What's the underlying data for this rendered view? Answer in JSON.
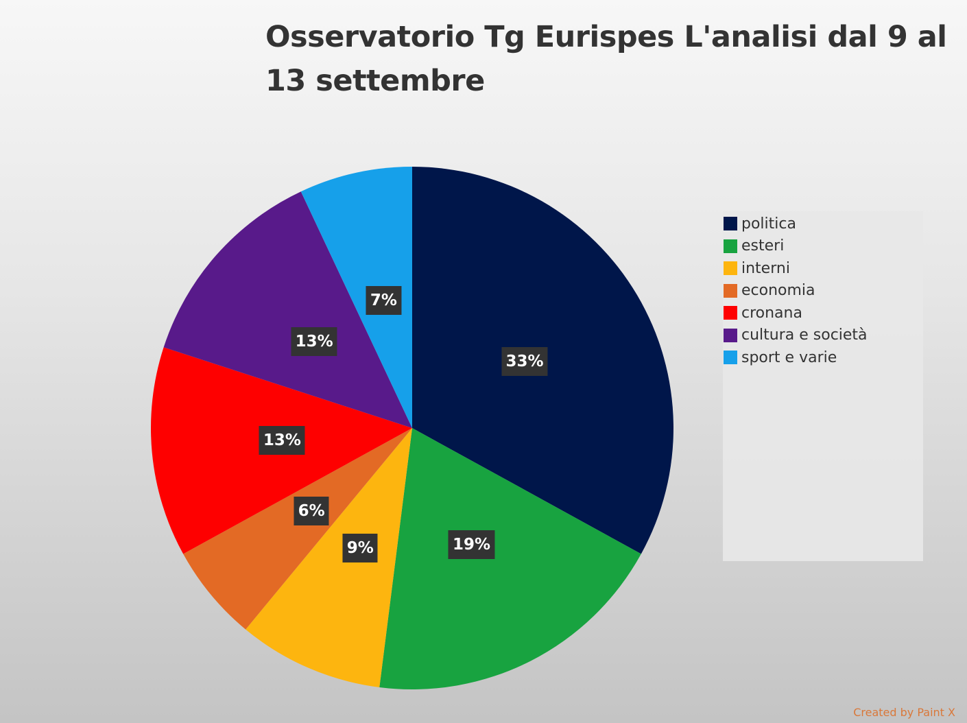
{
  "chart_data": {
    "type": "pie",
    "title": "Osservatorio Tg Eurispes L'analisi dal 9 al 13 settembre",
    "categories": [
      "politica",
      "esteri",
      "interni",
      "economia",
      "cronana",
      "cultura e società",
      "sport e varie"
    ],
    "values": [
      33,
      19,
      9,
      6,
      13,
      13,
      7
    ],
    "data_labels": [
      "33%",
      "19%",
      "9%",
      "6%",
      "13%",
      "13%",
      "7%"
    ],
    "colors": [
      "#00164a",
      "#18a340",
      "#fdb50f",
      "#e36a25",
      "#fe0000",
      "#581a8a",
      "#16a0ea"
    ],
    "legend_placement": "right",
    "start_angle": "12 o'clock, clockwise"
  },
  "watermark": "Created by Paint X"
}
